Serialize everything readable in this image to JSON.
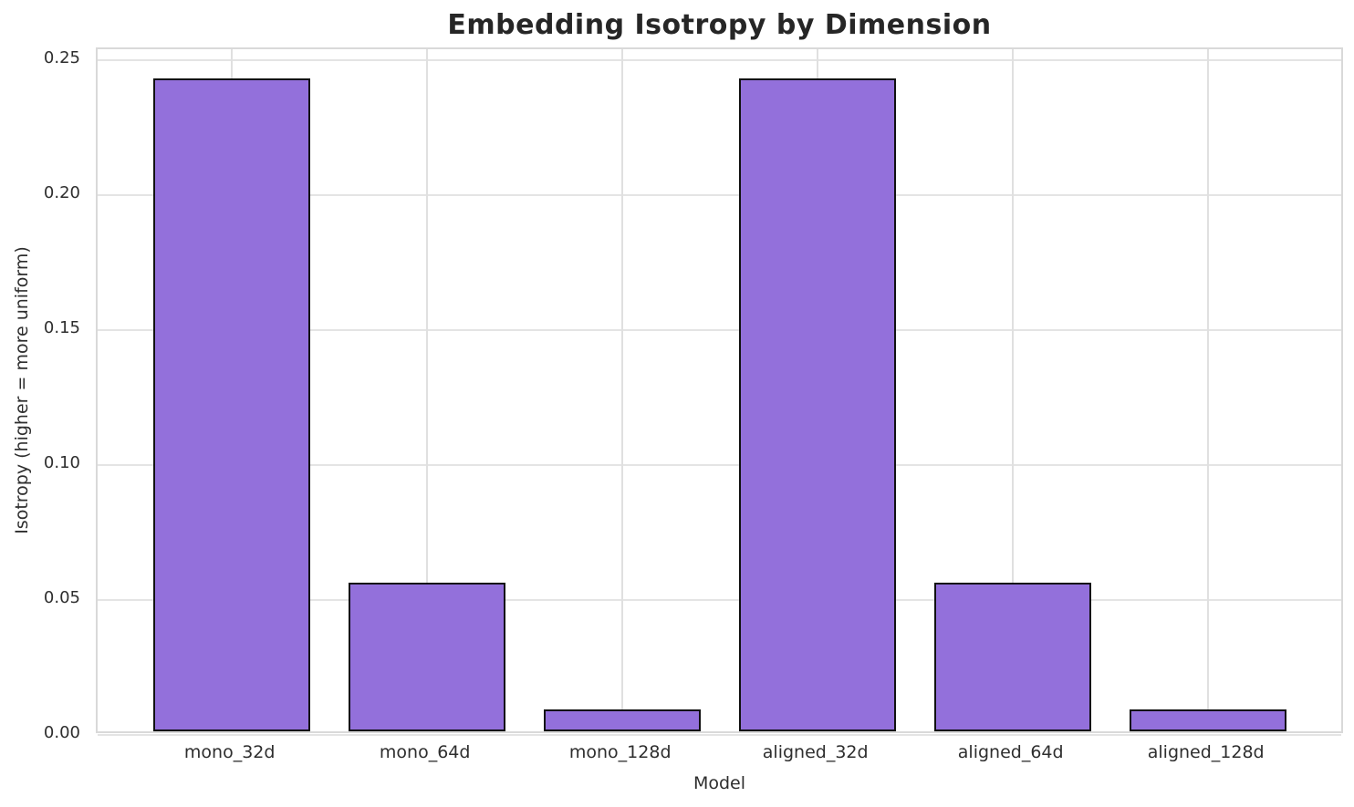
{
  "chart_data": {
    "type": "bar",
    "title": "Embedding Isotropy by Dimension",
    "xlabel": "Model",
    "ylabel": "Isotropy (higher = more uniform)",
    "categories": [
      "mono_32d",
      "mono_64d",
      "mono_128d",
      "aligned_32d",
      "aligned_64d",
      "aligned_128d"
    ],
    "values": [
      0.242,
      0.055,
      0.008,
      0.242,
      0.055,
      0.008
    ],
    "yticks": [
      0.0,
      0.05,
      0.1,
      0.15,
      0.2,
      0.25
    ],
    "ytick_labels": [
      "0.00",
      "0.05",
      "0.10",
      "0.15",
      "0.20",
      "0.25"
    ],
    "ylim": [
      0,
      0.2537
    ],
    "grid": true,
    "legend_position": "none",
    "colors": {
      "bar_fill": "#9370DB",
      "bar_edge": "#111111",
      "grid": "#e4e4e4",
      "spine": "#d9d9d9",
      "text": "#2e2e2e",
      "title": "#262626",
      "background": "#ffffff"
    }
  }
}
